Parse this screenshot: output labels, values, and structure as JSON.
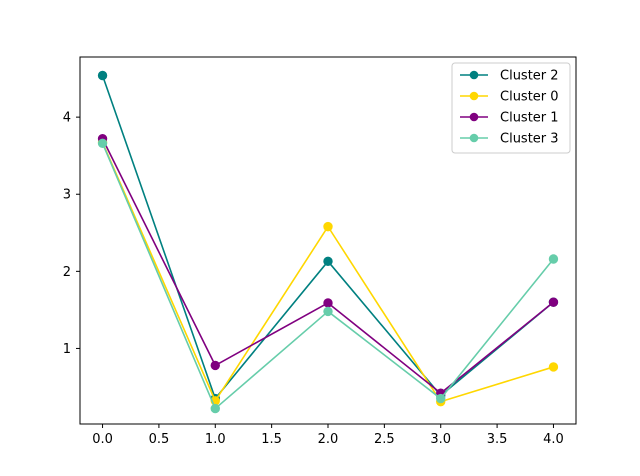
{
  "chart_data": {
    "type": "line",
    "title": "",
    "xlabel": "",
    "ylabel": "",
    "xlim": [
      -0.2,
      4.2
    ],
    "ylim": [
      0.02,
      4.78
    ],
    "x_ticks": [
      0.0,
      0.5,
      1.0,
      1.5,
      2.0,
      2.5,
      3.0,
      3.5,
      4.0
    ],
    "x_tick_labels": [
      "0.0",
      "0.5",
      "1.0",
      "1.5",
      "2.0",
      "2.5",
      "3.0",
      "3.5",
      "4.0"
    ],
    "y_ticks": [
      1,
      2,
      3,
      4
    ],
    "y_tick_labels": [
      "1",
      "2",
      "3",
      "4"
    ],
    "grid": false,
    "legend_position": "top-right",
    "x": [
      0,
      1,
      2,
      3,
      4
    ],
    "series": [
      {
        "name": "Cluster 2",
        "color": "#008080",
        "values": [
          4.54,
          0.35,
          2.13,
          0.39,
          1.6
        ]
      },
      {
        "name": "Cluster 0",
        "color": "#FFD700",
        "values": [
          3.67,
          0.32,
          2.58,
          0.31,
          0.76
        ]
      },
      {
        "name": "Cluster 1",
        "color": "#800080",
        "values": [
          3.72,
          0.78,
          1.59,
          0.42,
          1.6
        ]
      },
      {
        "name": "Cluster 3",
        "color": "#66CDAA",
        "values": [
          3.66,
          0.22,
          1.48,
          0.35,
          2.16
        ]
      }
    ]
  }
}
